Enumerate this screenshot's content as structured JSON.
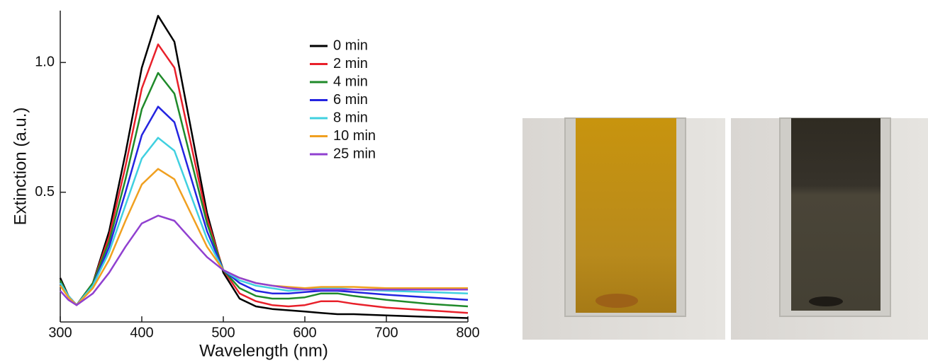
{
  "chart_data": {
    "type": "line",
    "x_label": "Wavelength (nm)",
    "y_label": "Extinction (a.u.)",
    "xlim": [
      300,
      800
    ],
    "ylim": [
      0,
      1.2
    ],
    "xticks": [
      300,
      400,
      500,
      600,
      700,
      800
    ],
    "yticks": [
      0.5,
      {
        "value": 1,
        "label": "1.0"
      }
    ],
    "legend": "upper right",
    "x": [
      300,
      310,
      320,
      340,
      360,
      380,
      400,
      420,
      440,
      460,
      480,
      500,
      520,
      540,
      560,
      580,
      600,
      620,
      640,
      660,
      700,
      750,
      800
    ],
    "series": [
      {
        "name": "0 min",
        "color": "#000000",
        "values": [
          0.17,
          0.1,
          0.065,
          0.15,
          0.35,
          0.65,
          0.98,
          1.18,
          1.08,
          0.75,
          0.42,
          0.19,
          0.09,
          0.06,
          0.05,
          0.045,
          0.04,
          0.035,
          0.03,
          0.03,
          0.025,
          0.02,
          0.015
        ]
      },
      {
        "name": "2 min",
        "color": "#e8202a",
        "values": [
          0.16,
          0.1,
          0.065,
          0.15,
          0.33,
          0.6,
          0.9,
          1.07,
          0.98,
          0.69,
          0.4,
          0.2,
          0.11,
          0.08,
          0.065,
          0.06,
          0.065,
          0.08,
          0.08,
          0.07,
          0.055,
          0.045,
          0.035
        ]
      },
      {
        "name": "4 min",
        "color": "#1f8a2a",
        "values": [
          0.16,
          0.1,
          0.065,
          0.15,
          0.31,
          0.55,
          0.82,
          0.96,
          0.88,
          0.63,
          0.38,
          0.2,
          0.13,
          0.1,
          0.09,
          0.09,
          0.095,
          0.11,
          0.11,
          0.1,
          0.085,
          0.07,
          0.06
        ]
      },
      {
        "name": "6 min",
        "color": "#2424e0",
        "values": [
          0.15,
          0.1,
          0.065,
          0.14,
          0.29,
          0.5,
          0.72,
          0.83,
          0.77,
          0.56,
          0.35,
          0.2,
          0.15,
          0.12,
          0.11,
          0.11,
          0.115,
          0.12,
          0.12,
          0.115,
          0.105,
          0.095,
          0.085
        ]
      },
      {
        "name": "8 min",
        "color": "#40d0e0",
        "values": [
          0.15,
          0.1,
          0.065,
          0.14,
          0.27,
          0.45,
          0.63,
          0.71,
          0.66,
          0.49,
          0.32,
          0.2,
          0.16,
          0.14,
          0.13,
          0.12,
          0.125,
          0.13,
          0.13,
          0.125,
          0.12,
          0.115,
          0.11
        ]
      },
      {
        "name": "10 min",
        "color": "#f0a020",
        "values": [
          0.14,
          0.095,
          0.065,
          0.13,
          0.24,
          0.39,
          0.53,
          0.59,
          0.55,
          0.42,
          0.29,
          0.2,
          0.17,
          0.15,
          0.14,
          0.135,
          0.13,
          0.135,
          0.135,
          0.135,
          0.13,
          0.13,
          0.13
        ]
      },
      {
        "name": "25 min",
        "color": "#9040d0",
        "values": [
          0.12,
          0.085,
          0.065,
          0.11,
          0.19,
          0.29,
          0.38,
          0.41,
          0.39,
          0.32,
          0.25,
          0.2,
          0.17,
          0.15,
          0.14,
          0.13,
          0.125,
          0.125,
          0.125,
          0.125,
          0.125,
          0.125,
          0.125
        ]
      }
    ]
  }
}
